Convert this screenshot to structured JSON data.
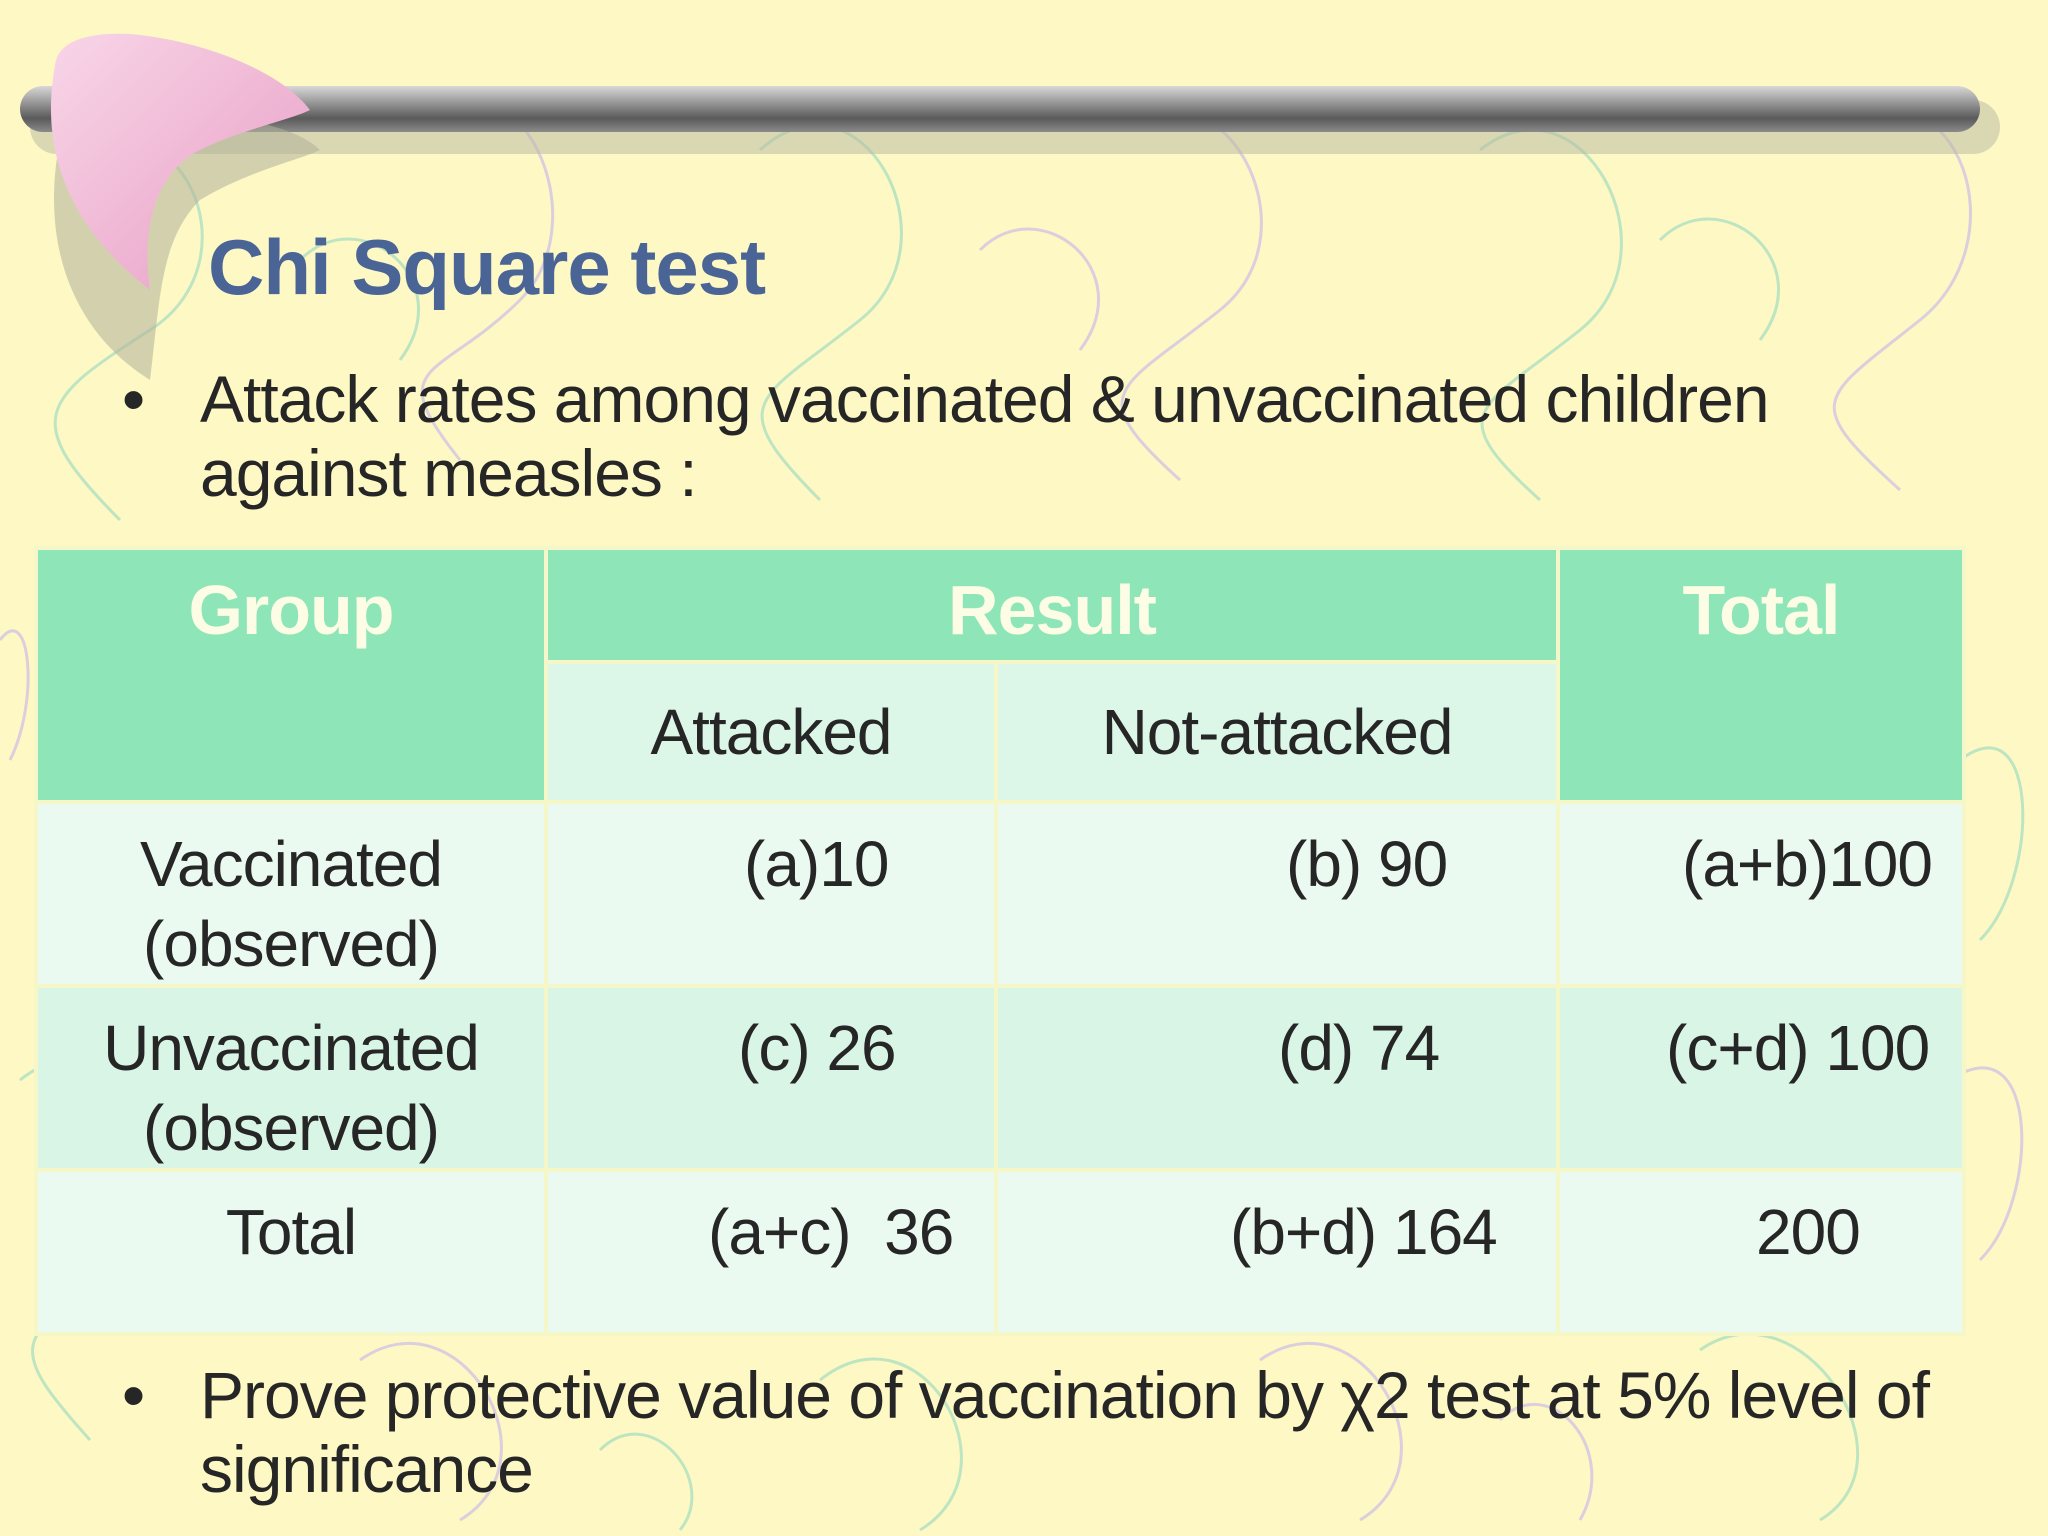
{
  "slide": {
    "title": "Chi Square test",
    "bullet_marker": "•",
    "bullets": [
      "Attack rates among vaccinated & unvaccinated children against measles :",
      "Prove protective value of vaccination by χ2 test at 5% level of significance"
    ]
  },
  "table": {
    "headers": {
      "group": "Group",
      "result": "Result",
      "total": "Total",
      "attacked": "Attacked",
      "not_attacked": "Not-attacked"
    },
    "rows": [
      {
        "group": [
          "Vaccinated",
          "(observed)"
        ],
        "attacked": "(a)10",
        "not_attacked": "(b) 90",
        "total": "(a+b)100"
      },
      {
        "group": [
          "Unvaccinated",
          "(observed)"
        ],
        "attacked": "(c) 26",
        "not_attacked": "(d) 74",
        "total": "(c+d) 100"
      },
      {
        "group": [
          "Total"
        ],
        "attacked": "(a+c)  36",
        "not_attacked": "(b+d) 164",
        "total": "200"
      }
    ]
  },
  "colors": {
    "background": "#fdf8c4",
    "title": "#4a6496",
    "header_fill": "#8ee6b8",
    "header_text": "#fdfde6",
    "subheader_fill": "#dcf7e8",
    "row_light": "#ebfaf1",
    "row_mid": "#d9f5e6",
    "doodle_green": "#aee0c0",
    "doodle_purple": "#d3c4e4",
    "boomerang_pink": "#f1b6d6"
  },
  "icons": {
    "decoration": "boomerang-icon",
    "bar": "metal-rod-icon"
  }
}
